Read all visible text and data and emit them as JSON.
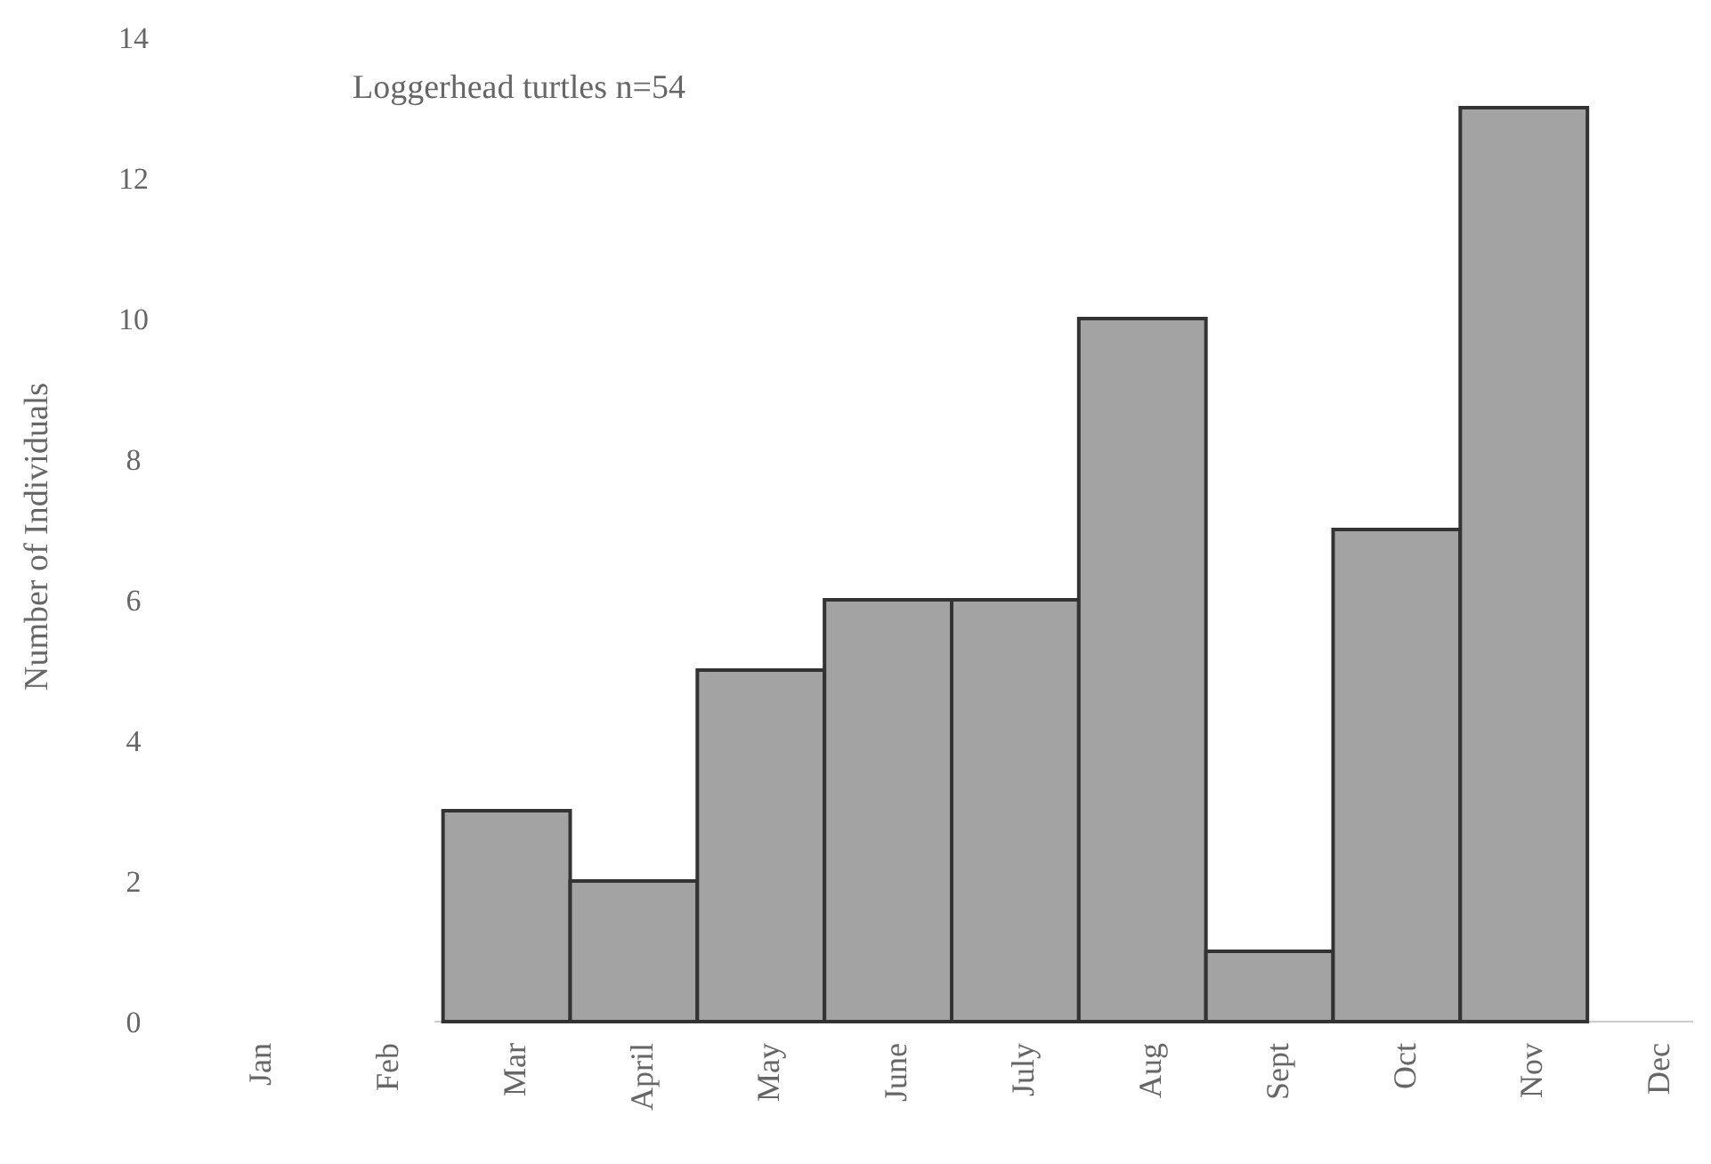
{
  "chart_data": {
    "type": "bar",
    "title": "Loggerhead turtles n=54",
    "ylabel": "Number of Individuals",
    "categories": [
      "Jan",
      "Feb",
      "Mar",
      "April",
      "May",
      "June",
      "July",
      "Aug",
      "Sept",
      "Oct",
      "Nov",
      "Dec"
    ],
    "values": [
      0,
      0,
      3,
      2,
      5,
      6,
      6,
      10,
      1,
      7,
      13,
      0
    ],
    "color": "#a3a3a3",
    "ylim": [
      0,
      14
    ],
    "yticks": [
      0,
      2,
      4,
      6,
      8,
      10,
      12,
      14
    ]
  }
}
